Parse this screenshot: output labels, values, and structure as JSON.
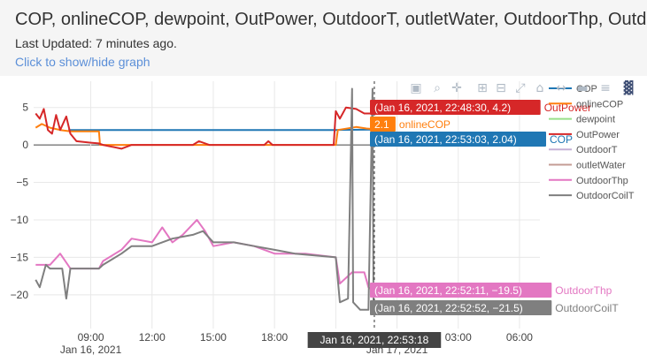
{
  "header": {
    "title": "COP, onlineCOP, dewpoint, OutPower, OutdoorT, outletWater, OutdoorThp, Outdoo",
    "updated": "Last Updated: 7 minutes ago.",
    "toggle": "Click to show/hide graph"
  },
  "modebar": [
    "camera-icon",
    "zoom-icon",
    "pan-icon",
    "zoom-in-icon",
    "zoom-out-icon",
    "autoscale-icon",
    "reset-axes-icon",
    "spike-lines-icon",
    "hover-closest-icon",
    "hover-compare-icon",
    "plotly-logo-icon"
  ],
  "chart_data": {
    "type": "line",
    "x_ticks": [
      "09:00",
      "12:00",
      "15:00",
      "18:00",
      "21:00",
      "00:00",
      "03:00",
      "06:00"
    ],
    "x_tick_dates": {
      "09:00": "Jan 16, 2021",
      "00:00": "Jan 17, 2021"
    },
    "y_ticks": [
      5,
      0,
      -5,
      -10,
      -15,
      -20
    ],
    "ylim": [
      -24.5,
      8.5
    ],
    "xlim_hours": [
      6.2,
      31
    ],
    "series": [
      {
        "name": "COP",
        "color": "#1f77b4",
        "points": [
          [
            7.9,
            2.0
          ],
          [
            9.4,
            2.0
          ],
          [
            21.0,
            2.0
          ],
          [
            22.88,
            2.04
          ]
        ]
      },
      {
        "name": "onlineCOP",
        "color": "#ff7f0e",
        "points": [
          [
            6.3,
            2.3
          ],
          [
            6.6,
            2.8
          ],
          [
            7.0,
            2.3
          ],
          [
            7.5,
            2.0
          ],
          [
            8.0,
            1.8
          ],
          [
            9.4,
            1.8
          ],
          [
            9.45,
            0
          ],
          [
            21.0,
            0
          ],
          [
            21.1,
            2.0
          ],
          [
            22.0,
            2.4
          ],
          [
            22.5,
            2.2
          ],
          [
            22.88,
            2.1
          ]
        ]
      },
      {
        "name": "dewpoint",
        "color": "#98df8a",
        "points": []
      },
      {
        "name": "OutPower",
        "color": "#d62728",
        "points": [
          [
            6.3,
            4.2
          ],
          [
            6.5,
            3.5
          ],
          [
            6.7,
            4.8
          ],
          [
            6.9,
            2.0
          ],
          [
            7.1,
            1.5
          ],
          [
            7.3,
            4.0
          ],
          [
            7.5,
            2.0
          ],
          [
            7.8,
            3.8
          ],
          [
            8.0,
            1.5
          ],
          [
            8.3,
            0.5
          ],
          [
            9.0,
            0.3
          ],
          [
            9.4,
            0.2
          ],
          [
            9.6,
            0.0
          ],
          [
            10.5,
            -0.5
          ],
          [
            11,
            0
          ],
          [
            14,
            0
          ],
          [
            14.3,
            0.5
          ],
          [
            14.8,
            0
          ],
          [
            17.5,
            0
          ],
          [
            17.7,
            0.5
          ],
          [
            17.9,
            0
          ],
          [
            20.9,
            0
          ],
          [
            21.0,
            4.5
          ],
          [
            21.2,
            3.5
          ],
          [
            21.5,
            5.0
          ],
          [
            22.0,
            4.8
          ],
          [
            22.4,
            4.2
          ],
          [
            22.8,
            4.2
          ]
        ]
      },
      {
        "name": "OutdoorT",
        "color": "#c5b0d5",
        "points": []
      },
      {
        "name": "outletWater",
        "color": "#c49c94",
        "points": []
      },
      {
        "name": "OutdoorThp",
        "color": "#e377c2",
        "points": [
          [
            6.3,
            -16.0
          ],
          [
            7.0,
            -16.0
          ],
          [
            7.5,
            -14.5
          ],
          [
            8.0,
            -16.5
          ],
          [
            9.4,
            -16.5
          ],
          [
            9.6,
            -15.5
          ],
          [
            10.5,
            -14.0
          ],
          [
            11.0,
            -12.5
          ],
          [
            12.0,
            -13.0
          ],
          [
            12.5,
            -11.0
          ],
          [
            13.0,
            -13.0
          ],
          [
            13.5,
            -12.0
          ],
          [
            14.2,
            -10.0
          ],
          [
            14.6,
            -11.5
          ],
          [
            15.0,
            -13.5
          ],
          [
            16.0,
            -13.0
          ],
          [
            17.0,
            -13.5
          ],
          [
            18.0,
            -14.5
          ],
          [
            19.0,
            -14.5
          ],
          [
            19.5,
            -14.5
          ],
          [
            21.0,
            -15.0
          ],
          [
            21.2,
            -18.5
          ],
          [
            21.8,
            -17.0
          ],
          [
            22.4,
            -17.0
          ],
          [
            22.6,
            -19.0
          ],
          [
            22.87,
            -19.5
          ]
        ]
      },
      {
        "name": "OutdoorCoilT",
        "color": "#7f7f7f",
        "points": [
          [
            6.3,
            -18.0
          ],
          [
            6.5,
            -19.0
          ],
          [
            6.8,
            -16.0
          ],
          [
            7.0,
            -16.5
          ],
          [
            7.6,
            -16.5
          ],
          [
            7.8,
            -20.5
          ],
          [
            8.0,
            -16.5
          ],
          [
            9.4,
            -16.5
          ],
          [
            9.6,
            -16.0
          ],
          [
            10.5,
            -14.5
          ],
          [
            11.0,
            -13.5
          ],
          [
            12.0,
            -13.5
          ],
          [
            13.0,
            -12.5
          ],
          [
            14.0,
            -12.0
          ],
          [
            14.5,
            -11.5
          ],
          [
            15.0,
            -13.0
          ],
          [
            16.0,
            -13.0
          ],
          [
            17.0,
            -13.5
          ],
          [
            18.0,
            -14.0
          ],
          [
            19.0,
            -14.5
          ],
          [
            21.0,
            -15.0
          ],
          [
            21.2,
            -21.0
          ],
          [
            21.6,
            -20.5
          ],
          [
            21.8,
            7.5
          ],
          [
            21.85,
            -21.0
          ],
          [
            22.2,
            -22.0
          ],
          [
            22.6,
            -22.0
          ],
          [
            22.8,
            7.5
          ],
          [
            22.85,
            -21.5
          ],
          [
            22.88,
            -21.5
          ]
        ]
      }
    ],
    "tooltips": [
      {
        "text": "(Jan 16, 2021, 22:48:30, 4.2)",
        "series": "OutPower",
        "color": "#d62728",
        "x": 22.81,
        "y": 4.2
      },
      {
        "text": "2.1",
        "series": "onlineCOP",
        "color": "#ff7f0e",
        "x": 22.88,
        "y": 2.1
      },
      {
        "text": "(Jan 16, 2021, 22:53:03, 2.04)",
        "series": "COP",
        "color": "#1f77b4",
        "x": 22.88,
        "y": 0.5
      },
      {
        "text": "(Jan 16, 2021, 22:52:11, −19.5)",
        "series": "OutdoorThp",
        "color": "#e377c2",
        "x": 22.87,
        "y": -19.5
      },
      {
        "text": "(Jan 16, 2021, 22:52:52, −21.5)",
        "series": "OutdoorCoilT",
        "color": "#7f7f7f",
        "x": 22.88,
        "y": -21.5
      }
    ],
    "cursor_label": "Jan 16, 2021, 22:53:18",
    "cursor_x": 22.89,
    "legend_position": "right"
  }
}
